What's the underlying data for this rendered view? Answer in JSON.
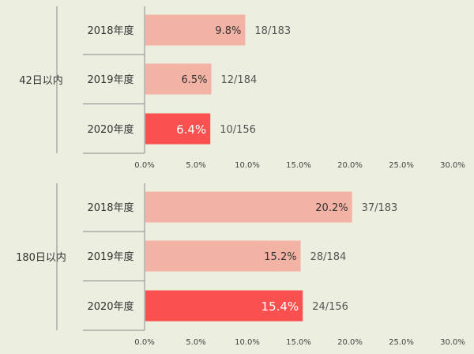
{
  "colors": {
    "background": "#eceee0",
    "bar_normal": "#f2b3a5",
    "bar_highlight": "#fa5050",
    "axis": "#8a8a8a"
  },
  "chart_data": [
    {
      "type": "bar",
      "orientation": "horizontal",
      "group_label": "42日以内",
      "categories": [
        "2018年度",
        "2019年度",
        "2020年度"
      ],
      "values": [
        9.8,
        6.5,
        6.4
      ],
      "value_labels": [
        "9.8%",
        "6.5%",
        "6.4%"
      ],
      "ratio_labels": [
        "18/183",
        "12/184",
        "10/156"
      ],
      "highlight": [
        false,
        false,
        true
      ],
      "xlim": [
        0,
        30
      ],
      "xticks": [
        "0.0%",
        "5.0%",
        "10.0%",
        "15.0%",
        "20.0%",
        "25.0%",
        "30.0%"
      ],
      "grid": false
    },
    {
      "type": "bar",
      "orientation": "horizontal",
      "group_label": "180日以内",
      "categories": [
        "2018年度",
        "2019年度",
        "2020年度"
      ],
      "values": [
        20.2,
        15.2,
        15.4
      ],
      "value_labels": [
        "20.2%",
        "15.2%",
        "15.4%"
      ],
      "ratio_labels": [
        "37/183",
        "28/184",
        "24/156"
      ],
      "highlight": [
        false,
        false,
        true
      ],
      "xlim": [
        0,
        30
      ],
      "xticks": [
        "0.0%",
        "5.0%",
        "10.0%",
        "15.0%",
        "20.0%",
        "25.0%",
        "30.0%"
      ],
      "grid": false
    }
  ]
}
